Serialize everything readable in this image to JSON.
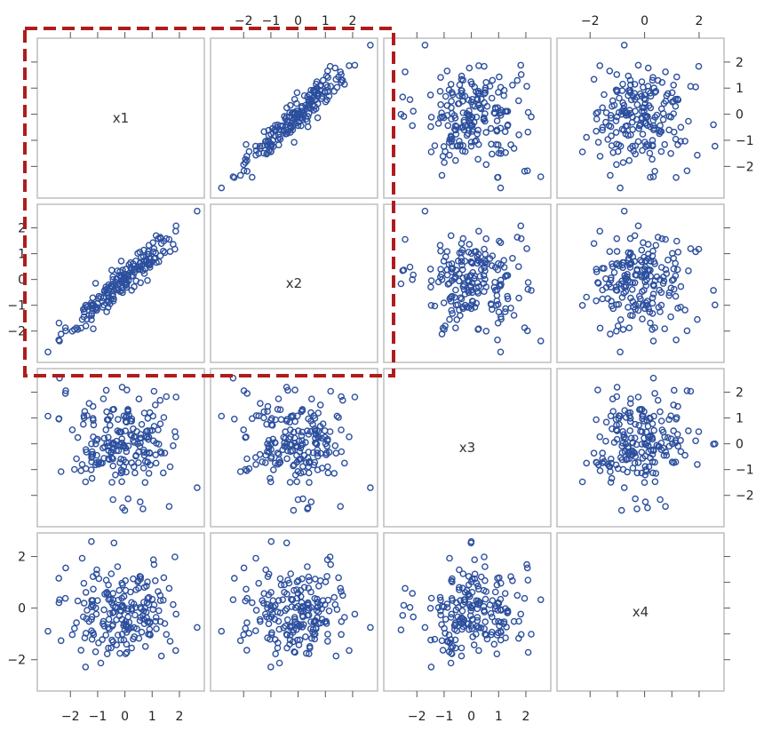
{
  "chart_data": {
    "type": "scatter",
    "subtype": "scatterplot-matrix",
    "variables": [
      "x1",
      "x2",
      "x3",
      "x4"
    ],
    "axis_range": [
      -3.0,
      2.7
    ],
    "ticks": [
      -2,
      -1,
      0,
      1,
      2
    ],
    "tick_labels_even": [
      "−2",
      "0",
      "2"
    ],
    "tick_labels_all": [
      "−2",
      "−1",
      "0",
      "1",
      "2"
    ],
    "n_points": 200,
    "correlation": {
      "x1-x2": 0.95,
      "other_pairs": 0.0
    },
    "marker": "open-circle",
    "highlight_region": {
      "rows": [
        1,
        2
      ],
      "cols": [
        1,
        2
      ],
      "style": "dashed"
    },
    "grid": false
  },
  "colors": {
    "point": "#2c4f9e",
    "highlight": "#b01c1c",
    "panel_border": "#bdbdbd"
  }
}
